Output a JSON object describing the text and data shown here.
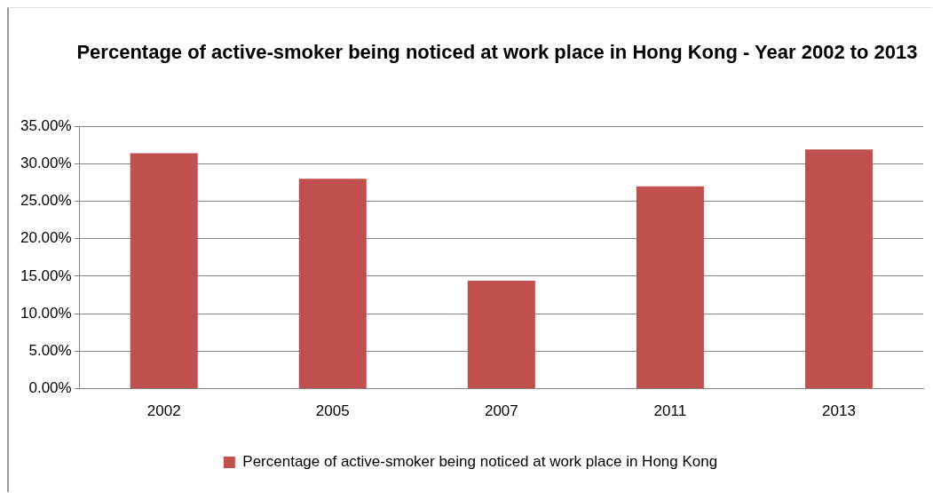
{
  "chart_data": {
    "type": "bar",
    "title": "Percentage of active-smoker being noticed at work place in Hong Kong - Year 2002 to 2013",
    "categories": [
      "2002",
      "2005",
      "2007",
      "2011",
      "2013"
    ],
    "series": [
      {
        "name": "Percentage of active-smoker being noticed at work place in Hong Kong",
        "color": "#c0504d",
        "values": [
          31.4,
          28.0,
          14.4,
          27.0,
          31.9
        ]
      }
    ],
    "ylim": [
      0,
      35
    ],
    "yticks": [
      {
        "value": 0,
        "label": "0.00%"
      },
      {
        "value": 5,
        "label": "5.00%"
      },
      {
        "value": 10,
        "label": "10.00%"
      },
      {
        "value": 15,
        "label": "15.00%"
      },
      {
        "value": 20,
        "label": "20.00%"
      },
      {
        "value": 25,
        "label": "25.00%"
      },
      {
        "value": 30,
        "label": "30.00%"
      },
      {
        "value": 35,
        "label": "35.00%"
      }
    ],
    "grid": "y",
    "legend": "bottom"
  }
}
